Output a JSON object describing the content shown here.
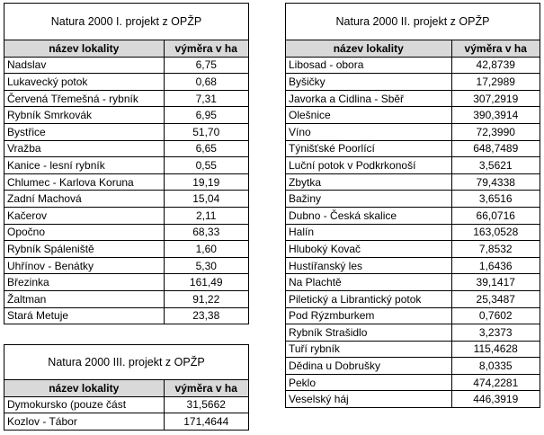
{
  "table1": {
    "title": "Natura 2000 I. projekt z OPŽP",
    "col_name": "název lokality",
    "col_area": "výměra v ha",
    "rows": [
      {
        "name": "Nadslav",
        "area": "6,75"
      },
      {
        "name": "Lukavecký potok",
        "area": "0,68"
      },
      {
        "name": "Červená Třemešná - rybník",
        "area": "7,31"
      },
      {
        "name": "Rybník Smrkovák",
        "area": "6,95"
      },
      {
        "name": "Bystřice",
        "area": "51,70"
      },
      {
        "name": "Vražba",
        "area": "6,65"
      },
      {
        "name": "Kanice - lesní rybník",
        "area": "0,55"
      },
      {
        "name": "Chlumec - Karlova Koruna",
        "area": "19,19"
      },
      {
        "name": "Zadní Machová",
        "area": "15,04"
      },
      {
        "name": "Kačerov",
        "area": "2,11"
      },
      {
        "name": "Opočno",
        "area": "68,33"
      },
      {
        "name": "Rybník Spáleniště",
        "area": "1,60"
      },
      {
        "name": "Uhřínov -  Benátky",
        "area": "5,30"
      },
      {
        "name": "Březinka",
        "area": "161,49"
      },
      {
        "name": "Žaltman",
        "area": "91,22"
      },
      {
        "name": "Stará Metuje",
        "area": "23,38"
      }
    ]
  },
  "table2": {
    "title": "Natura 2000 II. projekt z OPŽP",
    "col_name": "název lokality",
    "col_area": "výměra v ha",
    "rows": [
      {
        "name": "Libosad - obora",
        "area": "42,8739"
      },
      {
        "name": "Byšičky",
        "area": "17,2989"
      },
      {
        "name": "Javorka a Cidlina - Sběř",
        "area": "307,2919"
      },
      {
        "name": "Olešnice",
        "area": "390,3914"
      },
      {
        "name": "Víno",
        "area": "72,3990"
      },
      {
        "name": "Týnišťské Poorlící",
        "area": "648,7489"
      },
      {
        "name": "Luční potok v Podkrkonoší",
        "area": "3,5621"
      },
      {
        "name": "Zbytka",
        "area": "79,4338"
      },
      {
        "name": "Bažiny",
        "area": "3,6516"
      },
      {
        "name": "Dubno - Česká skalice",
        "area": "66,0716"
      },
      {
        "name": "Halín",
        "area": "163,0528"
      },
      {
        "name": "Hluboký Kovač",
        "area": "7,8532"
      },
      {
        "name": "Hustířanský les",
        "area": "1,6436"
      },
      {
        "name": "Na Plachtě",
        "area": "39,1417"
      },
      {
        "name": "Piletický a Librantický potok",
        "area": "25,3487"
      },
      {
        "name": "Pod Rýzmburkem",
        "area": "0,7602"
      },
      {
        "name": "Rybník Strašidlo",
        "area": "3,2373"
      },
      {
        "name": "Tuří rybník",
        "area": "115,4628"
      },
      {
        "name": "Dědina u Dobrušky",
        "area": "8,0335"
      },
      {
        "name": "Peklo",
        "area": "474,2281"
      },
      {
        "name": "Veselský háj",
        "area": "446,3919"
      }
    ]
  },
  "table3": {
    "title": "Natura 2000 III. projekt z OPŽP",
    "col_name": "název lokality",
    "col_area": "výměra v ha",
    "rows": [
      {
        "name": "Dymokursko (pouze část",
        "area": "31,5662"
      },
      {
        "name": "Kozlov - Tábor",
        "area": "171,4644"
      }
    ]
  }
}
